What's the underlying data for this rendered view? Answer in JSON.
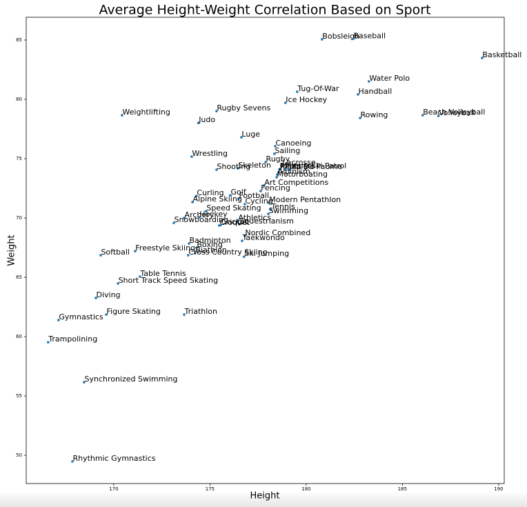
{
  "chart_data": {
    "type": "scatter",
    "title": "Average Height-Weight Correlation Based on Sport",
    "x_label": "Height",
    "y_label": "Weight",
    "color": "#1f77b4",
    "labels": [
      "Bobsleigh",
      "Baseball",
      "Basketball",
      "Water Polo",
      "Tug-Of-War",
      "Handball",
      "Ice Hockey",
      "Rugby Sevens",
      "Weightlifting",
      "Beach Volleyball",
      "Volleyball",
      "Rowing",
      "Judo",
      "Luge",
      "Canoeing",
      "Sailing",
      "Wrestling",
      "Rugby",
      "Lacrosse",
      "Skeleton",
      "Shooting",
      "Racquets",
      "Military Ski Patrol",
      "Polo",
      "Jeu De Paume",
      "Alpinism",
      "Motorboating",
      "Art Competitions",
      "Fencing",
      "Curling",
      "Golf",
      "Football",
      "Modern Pentathlon",
      "Alpine Skiing",
      "Cycling",
      "Tennis",
      "Speed Skating",
      "Swimming",
      "Hockey",
      "Archery",
      "Athletics",
      "Snowboarding",
      "Equestrianism",
      "Croquet",
      "Cricket",
      "Nordic Combined",
      "Taekwondo",
      "Badminton",
      "Boxing",
      "Freestyle Skiing",
      "Softball",
      "Biathlon",
      "Cross Country Skiing",
      "Ski Jumping",
      "Table Tennis",
      "Short Track Speed Skating",
      "Diving",
      "Figure Skating",
      "Triathlon",
      "Gymnastics",
      "Trampolining",
      "Synchronized Swimming",
      "Rhythmic Gymnastics"
    ],
    "x": [
      180.82,
      182.44,
      189.14,
      183.26,
      179.53,
      182.69,
      178.92,
      175.34,
      170.43,
      186.05,
      186.87,
      182.8,
      174.4,
      176.63,
      178.39,
      178.35,
      174.05,
      177.89,
      178.75,
      176.45,
      175.34,
      178.6,
      178.65,
      178.9,
      179.1,
      178.5,
      178.46,
      177.81,
      177.63,
      174.3,
      176.06,
      176.49,
      178.06,
      174.09,
      176.81,
      178.17,
      174.8,
      178.03,
      174.44,
      173.66,
      176.45,
      173.12,
      176.52,
      175.48,
      175.56,
      176.81,
      176.67,
      173.91,
      174.3,
      171.11,
      169.32,
      174.23,
      173.87,
      176.77,
      171.36,
      170.22,
      169.07,
      169.61,
      173.66,
      167.13,
      166.59,
      168.46,
      167.85
    ],
    "values": [
      85.06,
      85.1,
      83.49,
      81.51,
      80.64,
      80.41,
      79.71,
      79.01,
      78.66,
      78.66,
      78.6,
      78.43,
      78.02,
      76.8,
      76.05,
      75.41,
      75.17,
      74.71,
      74.42,
      74.19,
      74.07,
      74.1,
      74.12,
      74.1,
      74.08,
      73.66,
      73.43,
      72.73,
      72.27,
      71.86,
      71.92,
      71.63,
      71.28,
      71.34,
      71.16,
      70.7,
      70.58,
      70.35,
      70.06,
      70.0,
      69.77,
      69.59,
      69.48,
      69.36,
      69.42,
      68.49,
      68.08,
      67.85,
      67.5,
      67.21,
      66.86,
      67.03,
      66.86,
      66.74,
      65.06,
      64.48,
      63.26,
      61.86,
      61.86,
      61.4,
      59.53,
      56.16,
      49.48
    ],
    "xlim": [
      165.45,
      190.29
    ],
    "ylim": [
      47.62,
      86.92
    ],
    "xticks": [
      170,
      175,
      180,
      185,
      190
    ],
    "yticks": [
      50,
      55,
      60,
      65,
      70,
      75,
      80,
      85
    ]
  }
}
